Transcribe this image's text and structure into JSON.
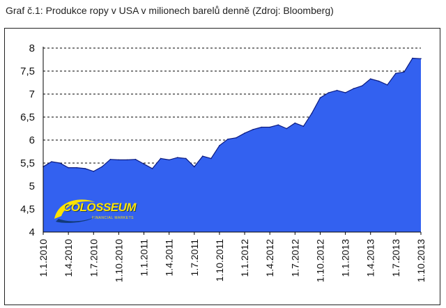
{
  "caption": "Graf č.1: Produkce ropy v USA v milionech barelů denně (Zdroj: Bloomberg)",
  "logo": {
    "name": "COLOSSEUM",
    "tagline": "FINANCIAL MARKETS"
  },
  "colors": {
    "area_fill": "#3361f0",
    "area_stroke": "#0a1a80",
    "gridline": "#000000"
  },
  "chart_data": {
    "type": "area",
    "title": "",
    "xlabel": "",
    "ylabel": "",
    "ylim": [
      4,
      8
    ],
    "yticks": [
      "4",
      "4,5",
      "5",
      "5,5",
      "6",
      "6,5",
      "7",
      "7,5",
      "8"
    ],
    "xtick_labels": [
      "1.1.2010",
      "1.4.2010",
      "1.7.2010",
      "1.10.2010",
      "1.1.2011",
      "1.4.2011",
      "1.7.2011",
      "1.10.2011",
      "1.1.2012",
      "1.4.2012",
      "1.7.2012",
      "1.10.2012",
      "1.1.2013",
      "1.4.2013",
      "1.7.2013",
      "1.10.2013"
    ],
    "grid": "horizontal dashed",
    "x": [
      "2010-01",
      "2010-02",
      "2010-03",
      "2010-04",
      "2010-05",
      "2010-06",
      "2010-07",
      "2010-08",
      "2010-09",
      "2010-10",
      "2010-11",
      "2010-12",
      "2011-01",
      "2011-02",
      "2011-03",
      "2011-04",
      "2011-05",
      "2011-06",
      "2011-07",
      "2011-08",
      "2011-09",
      "2011-10",
      "2011-11",
      "2011-12",
      "2012-01",
      "2012-02",
      "2012-03",
      "2012-04",
      "2012-05",
      "2012-06",
      "2012-07",
      "2012-08",
      "2012-09",
      "2012-10",
      "2012-11",
      "2012-12",
      "2013-01",
      "2013-02",
      "2013-03",
      "2013-04",
      "2013-05",
      "2013-06",
      "2013-07",
      "2013-08",
      "2013-09",
      "2013-10"
    ],
    "values": [
      5.42,
      5.53,
      5.5,
      5.4,
      5.4,
      5.38,
      5.32,
      5.42,
      5.58,
      5.57,
      5.57,
      5.58,
      5.48,
      5.38,
      5.6,
      5.57,
      5.62,
      5.6,
      5.42,
      5.65,
      5.6,
      5.88,
      6.02,
      6.05,
      6.15,
      6.23,
      6.28,
      6.28,
      6.33,
      6.25,
      6.37,
      6.3,
      6.58,
      6.92,
      7.03,
      7.08,
      7.03,
      7.12,
      7.18,
      7.33,
      7.28,
      7.2,
      7.45,
      7.48,
      7.78,
      7.77
    ]
  }
}
